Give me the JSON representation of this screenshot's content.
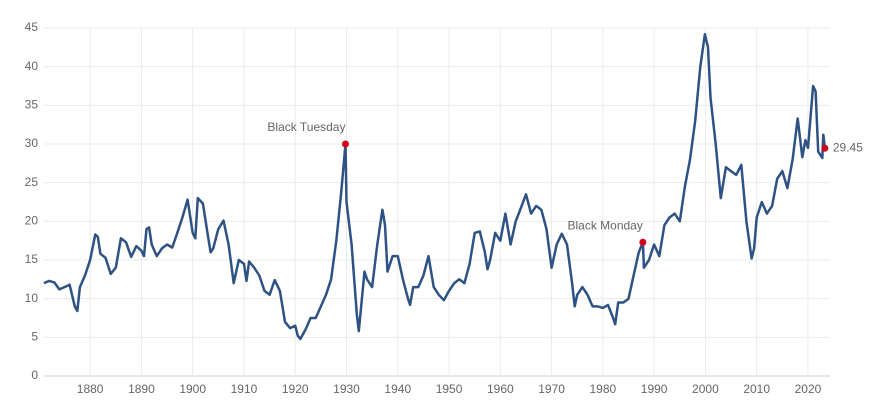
{
  "chart_data": {
    "type": "line",
    "x": [
      1871,
      1872,
      1873,
      1874,
      1875,
      1876,
      1877,
      1877.5,
      1878,
      1879,
      1880,
      1881,
      1881.5,
      1882,
      1883,
      1884,
      1885,
      1886,
      1887,
      1888,
      1889,
      1890,
      1890.5,
      1891,
      1891.5,
      1892,
      1893,
      1894,
      1895,
      1896,
      1897,
      1898,
      1899,
      1900,
      1900.5,
      1901,
      1902,
      1903,
      1903.5,
      1904,
      1905,
      1906,
      1907,
      1908,
      1909,
      1910,
      1910.5,
      1911,
      1912,
      1913,
      1914,
      1915,
      1916,
      1917,
      1918,
      1919,
      1920,
      1920.5,
      1921,
      1922,
      1923,
      1924,
      1925,
      1926,
      1927,
      1928,
      1929,
      1929.8,
      1930,
      1931,
      1932,
      1932.4,
      1933,
      1933.5,
      1934,
      1935,
      1936,
      1937,
      1937.5,
      1938,
      1939,
      1940,
      1941,
      1942,
      1942.4,
      1943,
      1944,
      1945,
      1946,
      1947,
      1948,
      1949,
      1950,
      1951,
      1952,
      1953,
      1954,
      1955,
      1956,
      1957,
      1957.5,
      1958,
      1959,
      1960,
      1961,
      1962,
      1963,
      1964,
      1965,
      1966,
      1967,
      1968,
      1969,
      1970,
      1971,
      1972,
      1973,
      1974,
      1974.5,
      1975,
      1976,
      1977,
      1978,
      1979,
      1980,
      1981,
      1982,
      1982.4,
      1983,
      1984,
      1985,
      1986,
      1987,
      1987.8,
      1988,
      1989,
      1990,
      1991,
      1992,
      1993,
      1994,
      1995,
      1996,
      1997,
      1998,
      1999,
      1999.9,
      2000.5,
      2001,
      2002,
      2003,
      2004,
      2005,
      2006,
      2007,
      2008,
      2009,
      2009.5,
      2010,
      2011,
      2012,
      2013,
      2014,
      2015,
      2016,
      2017,
      2018,
      2018.9,
      2019.5,
      2020,
      2021,
      2021.5,
      2022,
      2022.8,
      2023,
      2023.3
    ],
    "values": [
      12,
      12.3,
      12.1,
      11.2,
      11.5,
      11.8,
      9,
      8.4,
      11.5,
      13,
      15,
      18.3,
      18,
      15.8,
      15.3,
      13.2,
      14,
      17.8,
      17.3,
      15.4,
      16.8,
      16.2,
      15.5,
      19,
      19.2,
      17,
      15.5,
      16.5,
      17,
      16.6,
      18.5,
      20.5,
      22.8,
      18.5,
      17.8,
      23,
      22.3,
      18,
      16,
      16.5,
      19,
      20.1,
      17,
      12,
      15,
      14.5,
      12.3,
      14.8,
      14,
      13,
      11,
      10.5,
      12.4,
      11,
      7,
      6.2,
      6.5,
      5.2,
      4.8,
      6,
      7.5,
      7.5,
      9,
      10.5,
      12.5,
      17.5,
      24,
      30,
      22.5,
      17,
      8,
      5.8,
      10,
      13.5,
      12.5,
      11.5,
      17,
      21.5,
      19.5,
      13.5,
      15.5,
      15.5,
      12.5,
      10,
      9.2,
      11.5,
      11.5,
      13,
      15.5,
      11.5,
      10.5,
      9.8,
      11,
      12,
      12.5,
      12,
      14.5,
      18.5,
      18.7,
      16,
      13.8,
      15,
      18.5,
      17.5,
      21,
      17,
      20,
      21.7,
      23.5,
      21,
      22,
      21.5,
      19,
      14,
      17,
      18.4,
      17,
      12,
      9,
      10.5,
      11.5,
      10.5,
      9,
      9,
      8.8,
      9.2,
      7.5,
      6.7,
      9.5,
      9.5,
      10,
      13,
      16,
      17.3,
      14,
      15,
      17,
      15.5,
      19.5,
      20.5,
      21,
      20,
      24.5,
      28,
      33,
      40,
      44.2,
      42.5,
      36,
      30,
      23,
      27,
      26.5,
      26,
      27.3,
      20,
      15.2,
      16.5,
      20.5,
      22.5,
      21,
      22,
      25.5,
      26.5,
      24.3,
      28,
      33.3,
      28.3,
      30.5,
      29.5,
      37.5,
      36.8,
      29,
      28.2,
      31.2,
      29.45
    ],
    "color": "#2e5283",
    "marker_color": "#d0021b",
    "annotations": [
      {
        "text": "Black Tuesday",
        "x": 1929.8,
        "y": 30
      },
      {
        "text": "Black Monday",
        "x": 1987.8,
        "y": 17.3
      }
    ],
    "last_value": {
      "x": 2023.3,
      "y": 29.45,
      "label": "29.45"
    },
    "xlim": [
      1871,
      2024.3
    ],
    "ylim": [
      0,
      45
    ],
    "xticks": [
      1880,
      1890,
      1900,
      1910,
      1920,
      1930,
      1940,
      1950,
      1960,
      1970,
      1980,
      1990,
      2000,
      2010,
      2020
    ],
    "yticks": [
      0,
      5,
      10,
      15,
      20,
      25,
      30,
      35,
      40,
      45
    ],
    "grid": true
  }
}
